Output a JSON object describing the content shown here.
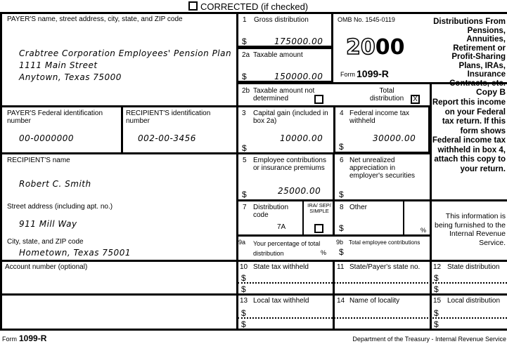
{
  "header": {
    "corrected_label": "CORRECTED (if checked)",
    "corrected_checked": false
  },
  "payer": {
    "label": "PAYER'S name, street address, city, state, and ZIP code",
    "name": "Crabtree Corporation Employees' Pension Plan",
    "street": "1111 Main Street",
    "city": "Anytown, Texas 75000"
  },
  "payer_fid": {
    "label": "PAYER'S Federal identification number",
    "value": "00-0000000"
  },
  "recipient_id": {
    "label": "RECIPIENT'S identification number",
    "value": "002-00-3456"
  },
  "recipient_name": {
    "label": "RECIPIENT'S name",
    "value": "Robert C. Smith"
  },
  "street": {
    "label": "Street address (including apt. no.)",
    "value": "911 Mill Way"
  },
  "city": {
    "label": "City, state, and ZIP code",
    "value": "Hometown, Texas 75001"
  },
  "account": {
    "label": "Account number (optional)"
  },
  "currency": "$",
  "percent": "%",
  "boxes": {
    "b1": {
      "num": "1",
      "label": "Gross distribution",
      "value": "175000.00"
    },
    "b2a": {
      "num": "2a",
      "label": "Taxable amount",
      "value": "150000.00"
    },
    "b2b": {
      "num": "2b",
      "label": "Taxable amount not determined",
      "checked": false,
      "total_label": "Total distribution",
      "total_mark": "X"
    },
    "b3": {
      "num": "3",
      "label": "Capital gain (included in box 2a)",
      "value": "10000.00"
    },
    "b4": {
      "num": "4",
      "label": "Federal income tax withheld",
      "value": "30000.00"
    },
    "b5": {
      "num": "5",
      "label": "Employee contributions or insurance premiums",
      "value": "25000.00"
    },
    "b6": {
      "num": "6",
      "label": "Net unrealized appreciation in employer's securities"
    },
    "b7": {
      "num": "7",
      "label": "Distribution code",
      "value": "7A",
      "ira_label": "IRA/ SEP/ SIMPLE"
    },
    "b8": {
      "num": "8",
      "label": "Other"
    },
    "b9a": {
      "num": "9a",
      "label": "Your percentage of total distribution"
    },
    "b9b": {
      "num": "9b",
      "label": "Total employee contributions"
    },
    "b10": {
      "num": "10",
      "label": "State tax withheld"
    },
    "b11": {
      "num": "11",
      "label": "State/Payer's state no."
    },
    "b12": {
      "num": "12",
      "label": "State distribution"
    },
    "b13": {
      "num": "13",
      "label": "Local tax withheld"
    },
    "b14": {
      "num": "14",
      "label": "Name of locality"
    },
    "b15": {
      "num": "15",
      "label": "Local distribution"
    }
  },
  "omb": {
    "number": "OMB No. 1545-0119",
    "year_outline": "20",
    "year_bold": "00",
    "form_prefix": "Form",
    "form_name": "1099-R"
  },
  "title": "Distributions From Pensions, Annuities, Retirement or Profit-Sharing Plans, IRAs, Insurance Contracts, etc.",
  "copy": {
    "title": "Copy B",
    "instructions": "Report this income on your Federal tax return. If this form shows Federal income tax withheld in box 4, attach this copy to your return."
  },
  "irs_note": "This information is being furnished to the Internal Revenue Service.",
  "footer": {
    "form_prefix": "Form",
    "form_name": "1099-R",
    "department": "Department of the Treasury - Internal Revenue Service"
  }
}
